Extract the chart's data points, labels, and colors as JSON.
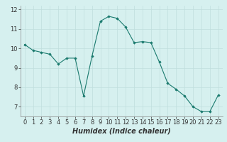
{
  "x": [
    0,
    1,
    2,
    3,
    4,
    5,
    6,
    7,
    8,
    9,
    10,
    11,
    12,
    13,
    14,
    15,
    16,
    17,
    18,
    19,
    20,
    21,
    22,
    23
  ],
  "y": [
    10.2,
    9.9,
    9.8,
    9.7,
    9.2,
    9.5,
    9.5,
    7.55,
    9.6,
    11.4,
    11.65,
    11.55,
    11.1,
    10.3,
    10.35,
    10.3,
    9.3,
    8.2,
    7.9,
    7.55,
    7.0,
    6.75,
    6.75,
    7.6
  ],
  "xlabel": "Humidex (Indice chaleur)",
  "ylim": [
    6.5,
    12.2
  ],
  "xlim": [
    -0.5,
    23.5
  ],
  "yticks": [
    7,
    8,
    9,
    10,
    11,
    12
  ],
  "xticks": [
    0,
    1,
    2,
    3,
    4,
    5,
    6,
    7,
    8,
    9,
    10,
    11,
    12,
    13,
    14,
    15,
    16,
    17,
    18,
    19,
    20,
    21,
    22,
    23
  ],
  "line_color": "#1a7a6e",
  "marker_color": "#1a7a6e",
  "bg_color": "#d6f0ef",
  "grid_color": "#c0dedd",
  "axis_bg": "#d6f0ef",
  "tick_label_color": "#333333",
  "xlabel_color": "#333333",
  "xlabel_fontsize": 7,
  "tick_fontsize": 6,
  "ytick_label_color": "#333333"
}
